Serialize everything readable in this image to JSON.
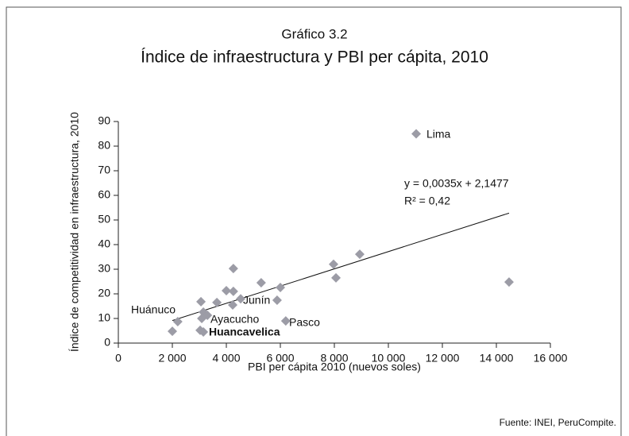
{
  "chart_data": {
    "type": "scatter",
    "title": "Gráfico 3.2",
    "subtitle": "Índice de infraestructura y PBI per cápita, 2010",
    "x_label": "PBI per cápita 2010 (nuevos soles)",
    "y_label": "Índice de competitividad en infraestructura, 2010",
    "source": "Fuente: INEI, PeruCompite.",
    "color": "#9c9ca6",
    "x": [
      11030,
      14470,
      8940,
      7970,
      8060,
      6000,
      5880,
      5290,
      4260,
      4260,
      4000,
      4235,
      4530,
      3650,
      3060,
      3150,
      3300,
      3090,
      3030,
      3150,
      2200,
      2000,
      6200
    ],
    "y": [
      85,
      24.8,
      36.1,
      32,
      26.5,
      22.6,
      17.4,
      24.5,
      30.3,
      21,
      21.3,
      15.5,
      18,
      16.5,
      16.8,
      12.6,
      11.3,
      10,
      5.2,
      4.5,
      8.7,
      4.8,
      9
    ],
    "labels": [
      "Lima",
      null,
      null,
      null,
      null,
      null,
      null,
      null,
      null,
      null,
      null,
      null,
      "Junín",
      null,
      null,
      null,
      "Ayacucho",
      null,
      null,
      "Huancavelica",
      "Huánuco",
      null,
      "Pasco"
    ],
    "trendline": {
      "slope": 0.0035,
      "intercept": 2.1477,
      "equation": "y = 0,0035x + 2,1477",
      "r2": 0.42,
      "r2_label": "R² = 0,42"
    },
    "xlim": [
      0,
      16000
    ],
    "xticks": [
      0,
      {
        "value": 2000,
        "label": "2 000"
      },
      {
        "value": 4000,
        "label": "4 000"
      },
      {
        "value": 6000,
        "label": "6 000"
      },
      {
        "value": 8000,
        "label": "8 000"
      },
      {
        "value": 10000,
        "label": "10 000"
      },
      {
        "value": 12000,
        "label": "12 000"
      },
      {
        "value": 14000,
        "label": "14 000"
      },
      {
        "value": 16000,
        "label": "16 000"
      }
    ],
    "ylim": [
      0,
      90
    ],
    "yticks": [
      0,
      10,
      20,
      30,
      40,
      50,
      60,
      70,
      80,
      90
    ]
  }
}
